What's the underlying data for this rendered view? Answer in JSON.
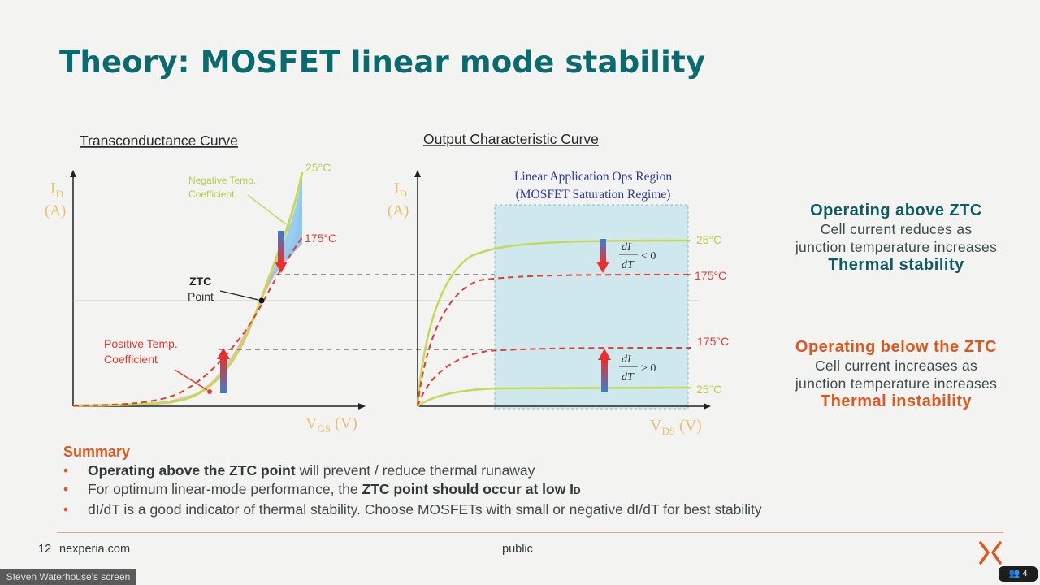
{
  "slide": {
    "title": "Theory: MOSFET linear mode stability"
  },
  "transconductance": {
    "heading": "Transconductance Curve",
    "y_axis": {
      "symbol": "I",
      "subscript": "D",
      "unit": "(A)"
    },
    "x_axis": {
      "symbol": "V",
      "subscript": "GS",
      "unit": " (V)"
    },
    "label_25c": "25°C",
    "label_175c": "175°C",
    "neg_coeff": [
      "Negative Temp.",
      "Coefficient"
    ],
    "pos_coeff": [
      "Positive Temp.",
      "Coefficient"
    ],
    "ztc": [
      "ZTC",
      "Point"
    ]
  },
  "output": {
    "heading": "Output Characteristic Curve",
    "y_axis": {
      "symbol": "I",
      "subscript": "D",
      "unit": "(A)"
    },
    "x_axis": {
      "symbol": "V",
      "subscript": "DS",
      "unit": " (V)"
    },
    "region": [
      "Linear Application Ops Region",
      "(MOSFET Saturation Regime)"
    ],
    "upper_formula": {
      "num": "dI",
      "den": "dT",
      "rel": "< 0"
    },
    "lower_formula": {
      "num": "dI",
      "den": "dT",
      "rel": "> 0"
    },
    "labels": {
      "upper_25c": "25°C",
      "upper_175c": "175°C",
      "lower_175c": "175°C",
      "lower_25c": "25°C"
    }
  },
  "side_notes": {
    "above": {
      "head": "Operating above ZTC",
      "line1": "Cell current reduces as",
      "line2": "junction temperature increases",
      "verdict": "Thermal stability"
    },
    "below": {
      "head": "Operating below the ZTC",
      "line1": "Cell current increases as",
      "line2": "junction temperature increases",
      "verdict": "Thermal instability"
    }
  },
  "summary": {
    "title": "Summary",
    "b1_bold": "Operating above the ZTC point",
    "b1_rest": " will prevent / reduce thermal runaway",
    "b2_pre": "For optimum linear-mode performance, the ",
    "b2_bold": "ZTC point should occur at low I",
    "b2_sub": "D",
    "b3": "dI/dT is a good indicator of thermal stability. Choose MOSFETs with small or negative dI/dT for best stability"
  },
  "footer": {
    "page": "12",
    "site": "nexperia.com",
    "classification": "public"
  },
  "overlay": {
    "screen_share": "Steven Waterhouse's screen",
    "participants": "4"
  },
  "colors": {
    "title": "#0b6a6e",
    "accent_orange": "#e0561d",
    "curve_25c": "#c4d85a",
    "curve_175c": "#e03c32",
    "region_fill": "#cfe8ee",
    "neg_fill": "#8cc8ea",
    "pos_fill": "#f2a8a8"
  }
}
